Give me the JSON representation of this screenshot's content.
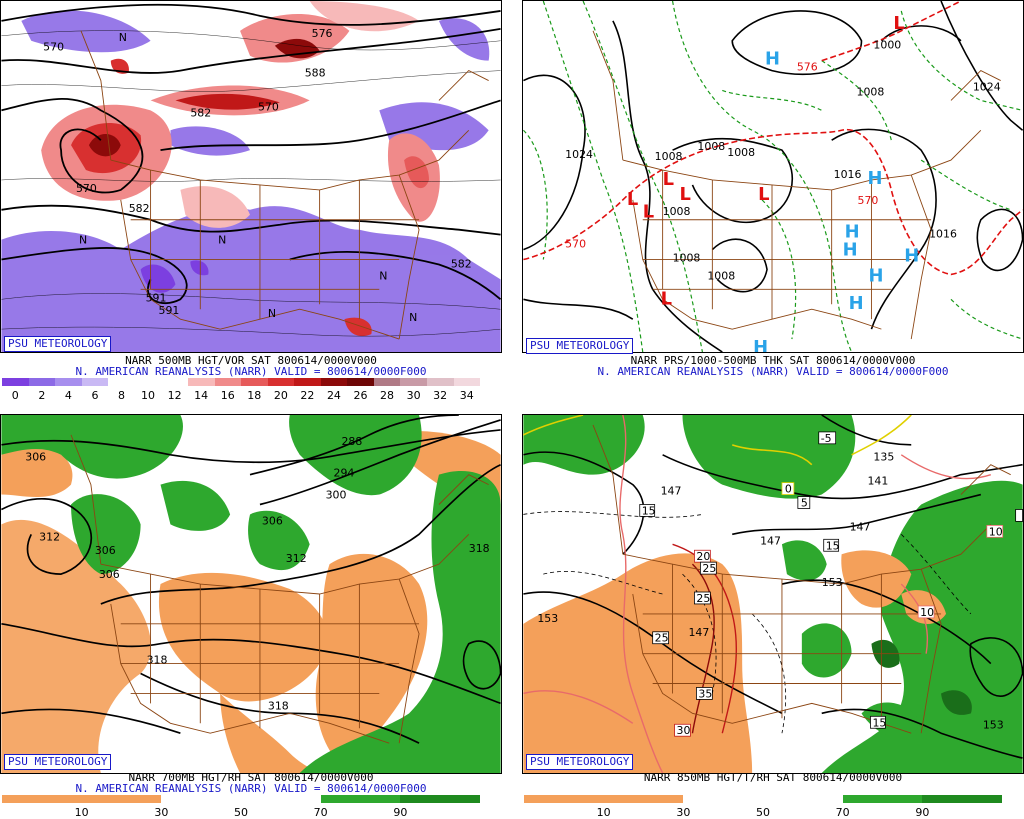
{
  "badge": "PSU METEOROLOGY",
  "panels": {
    "tl": {
      "line1": "NARR 500MB HGT/VOR SAT 800614/0000V000",
      "line2": "N. AMERICAN REANALYSIS (NARR) VALID = 800614/0000F000",
      "scale": [
        "0",
        "2",
        "4",
        "6",
        "8",
        "10",
        "12",
        "14",
        "16",
        "18",
        "20",
        "22",
        "24",
        "26",
        "28",
        "30",
        "32",
        "34"
      ],
      "scale_colors": [
        "#7c3fe0",
        "#8c6ae6",
        "#a78fee",
        "#c9b9f4",
        "#ffffff",
        "#ffffff",
        "#ffffff",
        "#f7b9b9",
        "#f08a8a",
        "#e65a5a",
        "#d83030",
        "#c01818",
        "#8c0a0a",
        "#6e0606",
        "#b07a86",
        "#c89aa6",
        "#e0c0c8",
        "#f2d8de"
      ],
      "labels": {
        "h570a": "570",
        "h576a": "576",
        "h588": "588",
        "h570b": "570",
        "h582a": "582",
        "h570c": "570",
        "h582b": "582",
        "h582c": "582",
        "h591": "591",
        "h591b": "591",
        "n": "N"
      }
    },
    "tr": {
      "line1": "NARR PRS/1000-500MB THK SAT 800614/0000V000",
      "line2": "N. AMERICAN REANALYSIS (NARR) VALID = 800614/0000F000",
      "labels": {
        "p1024a": "1024",
        "p1008a": "1008",
        "p1008b": "1008",
        "p1008c": "1008",
        "p1008d": "1008",
        "p1016a": "1016",
        "p1016b": "1016",
        "p1000": "1000",
        "p1024b": "1024",
        "p1008e": "1008",
        "p1016c": "1016",
        "t570a": "570",
        "t576": "576",
        "t570b": "570",
        "L": "L",
        "H": "H"
      }
    },
    "bl": {
      "line1": "NARR 700MB HGT/RH SAT 800614/0000V000",
      "line2": "N. AMERICAN REANALYSIS (NARR) VALID = 800614/0000F000",
      "scale": [
        "10",
        "30",
        "50",
        "70",
        "90"
      ],
      "labels": {
        "h306a": "306",
        "h312a": "312",
        "h306b": "306",
        "h306c": "306",
        "h288": "288",
        "h294": "294",
        "h300": "300",
        "h306d": "306",
        "h312b": "312",
        "h318a": "318",
        "h318b": "318",
        "h318c": "318"
      }
    },
    "br": {
      "line1": "NARR 850MB HGT/T/RH SAT 800614/0000V000",
      "scale": [
        "10",
        "30",
        "50",
        "70",
        "90"
      ],
      "labels": {
        "h147a": "147",
        "h147b": "147",
        "h147c": "147",
        "h147d": "147",
        "h153a": "153",
        "h153b": "153",
        "h153c": "153",
        "h135": "135",
        "h141": "141",
        "t15a": "15",
        "t15b": "15",
        "t15c": "15",
        "t15d": "15",
        "t5": "5",
        "tm5": "-5",
        "t0": "0",
        "t20": "20",
        "t25a": "25",
        "t25b": "25",
        "t25c": "25",
        "t30": "30",
        "t35": "35",
        "t10a": "10",
        "t10b": "10"
      }
    }
  },
  "colors": {
    "vort_purple": "#7c3fe0",
    "vort_red": "#d83030",
    "rh_dry": "#f4a05a",
    "rh_moist": "#2ea82e",
    "boundary": "#8b4513",
    "high": "#2aa3e8",
    "low": "#e01010"
  }
}
